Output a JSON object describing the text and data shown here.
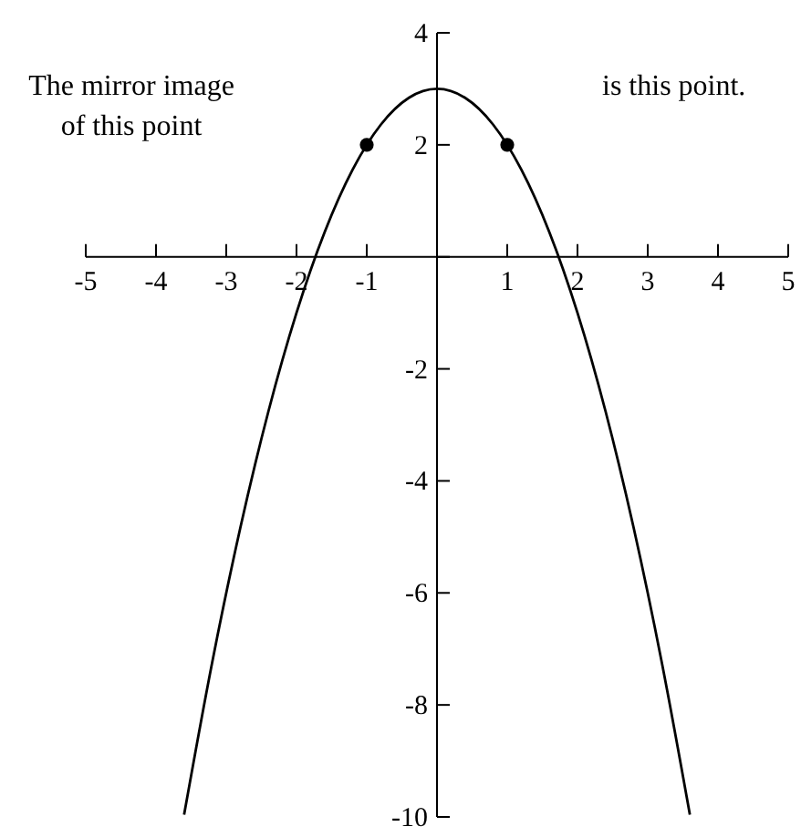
{
  "chart_data": {
    "type": "line",
    "xlim": [
      -5,
      5
    ],
    "ylim": [
      -10,
      4
    ],
    "xticks": [
      -5,
      -4,
      -3,
      -2,
      -1,
      {
        "value": 0,
        "label": null
      },
      1,
      2,
      3,
      4,
      5
    ],
    "yticks": [
      -10,
      -8,
      -6,
      -4,
      -2,
      {
        "value": 0,
        "label": null
      },
      2,
      4
    ],
    "grid": false,
    "series": [
      {
        "color": "#000000",
        "marker": "none",
        "x": [
          -3.6,
          -3.2,
          -2.8,
          -2.4,
          -2,
          -1.6,
          -1.2,
          -0.8,
          -0.4,
          0,
          0.4,
          0.8,
          1.2,
          1.6,
          2,
          2.4,
          2.8,
          3.2,
          3.6
        ],
        "values": [
          -9.96,
          -7.24,
          -4.84,
          -2.76,
          -1,
          0.44,
          1.56,
          2.36,
          2.84,
          3,
          2.84,
          2.36,
          1.56,
          0.44,
          -1,
          -2.76,
          -4.84,
          -7.24,
          -9.96
        ]
      },
      {
        "type": "scatter",
        "color": "#000000",
        "marker": "circle",
        "x": [
          -1,
          1
        ],
        "values": [
          2,
          2
        ]
      }
    ],
    "annotations": [
      "The mirror image\nof this point",
      "is this point."
    ]
  }
}
